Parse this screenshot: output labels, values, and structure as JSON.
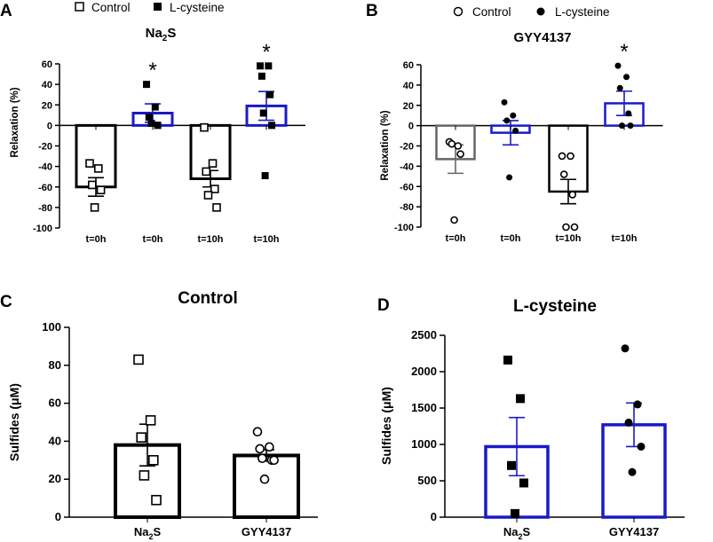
{
  "colors": {
    "black": "#000000",
    "blue": "#1a1ac8",
    "gray": "#666666"
  },
  "chart_data": [
    {
      "panel": "A",
      "type": "bar",
      "title": "Na2S",
      "title_parts": {
        "base": "Na",
        "sub": "2",
        "tail": "S"
      },
      "ylabel": "Relaxation (%)",
      "ylim": [
        -100,
        60
      ],
      "yticks": [
        "60",
        "40",
        "20",
        "0",
        "-20",
        "-40",
        "-60",
        "-80",
        "-100"
      ],
      "legend": [
        {
          "label": "Control",
          "marker": "open-square"
        },
        {
          "label": "L-cysteine",
          "marker": "filled-square"
        }
      ],
      "categories": [
        "t=0h",
        "t=0h",
        "t=10h",
        "t=10h"
      ],
      "series": [
        {
          "name": "Control t=0h",
          "value": -60,
          "sem": 9,
          "color": "black",
          "marker": "open-square",
          "points": [
            -37,
            -42,
            -58,
            -63,
            -80
          ]
        },
        {
          "name": "L-cysteine t=0h",
          "value": 12,
          "sem": 9,
          "color": "blue",
          "marker": "filled-square",
          "points": [
            40,
            18,
            8,
            0,
            2
          ],
          "star": "*"
        },
        {
          "name": "Control t=10h",
          "value": -52,
          "sem": 8,
          "color": "black",
          "marker": "open-square",
          "points": [
            -2,
            -37,
            -45,
            -62,
            -68,
            -80
          ]
        },
        {
          "name": "L-cysteine t=10h",
          "value": 19,
          "sem": 14,
          "color": "blue",
          "marker": "filled-square",
          "points": [
            58,
            58,
            48,
            30,
            12,
            0,
            -49
          ],
          "star": "*"
        }
      ]
    },
    {
      "panel": "B",
      "type": "bar",
      "title": "GYY4137",
      "ylabel": "Relaxation (%)",
      "ylim": [
        -100,
        60
      ],
      "yticks": [
        "60",
        "40",
        "20",
        "0",
        "-20",
        "-40",
        "-60",
        "-80",
        "-100"
      ],
      "legend": [
        {
          "label": "Control",
          "marker": "open-circle"
        },
        {
          "label": "L-cysteine",
          "marker": "filled-circle"
        }
      ],
      "categories": [
        "t=0h",
        "t=0h",
        "t=10h",
        "t=10h"
      ],
      "series": [
        {
          "name": "Control t=0h",
          "value": -33,
          "sem": 14,
          "color": "gray",
          "marker": "open-circle",
          "points": [
            -16,
            -20,
            -18,
            -28,
            -93
          ]
        },
        {
          "name": "L-cysteine t=0h",
          "value": -7,
          "sem": 12,
          "color": "blue",
          "marker": "filled-circle",
          "points": [
            23,
            10,
            5,
            -5,
            -51
          ]
        },
        {
          "name": "Control t=10h",
          "value": -65,
          "sem": 12,
          "color": "black",
          "marker": "open-circle",
          "points": [
            -30,
            -30,
            -48,
            -68,
            -100,
            -100
          ]
        },
        {
          "name": "L-cysteine t=10h",
          "value": 22,
          "sem": 12,
          "color": "blue",
          "marker": "filled-circle",
          "points": [
            59,
            48,
            37,
            12,
            0,
            0
          ],
          "star": "*"
        }
      ]
    },
    {
      "panel": "C",
      "type": "bar",
      "title": "Control",
      "ylabel": "Sulfides (μM)",
      "ylim": [
        0,
        100
      ],
      "yticks": [
        "100",
        "80",
        "60",
        "40",
        "20",
        "0"
      ],
      "categories": [
        "Na2S",
        "GYY4137"
      ],
      "category_parts": [
        {
          "base": "Na",
          "sub": "2",
          "tail": "S"
        },
        {
          "base": "GYY4137",
          "sub": "",
          "tail": ""
        }
      ],
      "series": [
        {
          "name": "Na2S",
          "value": 38,
          "sem": 11,
          "color": "black",
          "marker": "open-square",
          "points": [
            83,
            51,
            42,
            30,
            22,
            9
          ]
        },
        {
          "name": "GYY4137",
          "value": 32.5,
          "sem": 3,
          "color": "black",
          "marker": "open-circle",
          "points": [
            45,
            37,
            36,
            30,
            31,
            30,
            20
          ]
        }
      ]
    },
    {
      "panel": "D",
      "type": "bar",
      "title": "L-cysteine",
      "ylabel": "Sulfides (μM)",
      "ylim": [
        0,
        2500
      ],
      "yticks": [
        "2500",
        "2000",
        "1500",
        "1000",
        "500",
        "0"
      ],
      "categories": [
        "Na2S",
        "GYY4137"
      ],
      "category_parts": [
        {
          "base": "Na",
          "sub": "2",
          "tail": "S"
        },
        {
          "base": "GYY4137",
          "sub": "",
          "tail": ""
        }
      ],
      "series": [
        {
          "name": "Na2S",
          "value": 970,
          "sem": 400,
          "color": "blue",
          "marker": "filled-square",
          "points": [
            2160,
            1630,
            710,
            470,
            50
          ]
        },
        {
          "name": "GYY4137",
          "value": 1270,
          "sem": 300,
          "color": "blue",
          "marker": "filled-circle",
          "points": [
            2320,
            1550,
            1300,
            970,
            620
          ]
        }
      ]
    }
  ]
}
